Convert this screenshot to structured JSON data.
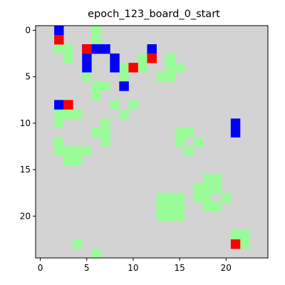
{
  "title": "epoch_123_board_0_start",
  "chart_data": {
    "type": "heatmap",
    "title": "epoch_123_board_0_start",
    "grid_size": 25,
    "xlim": [
      -0.5,
      24.5
    ],
    "ylim": [
      24.5,
      -0.5
    ],
    "xticks": [
      0,
      5,
      10,
      15,
      20
    ],
    "yticks": [
      0,
      5,
      10,
      15,
      20
    ],
    "xlabel": "",
    "ylabel": "",
    "legend": "none",
    "grid": false,
    "colors": {
      "empty": "#d3d3d3",
      "green": "#98fb98",
      "blue": "#0000ff",
      "red": "#ff0000"
    },
    "cells": {
      "blue": [
        [
          2,
          0
        ],
        [
          5,
          2
        ],
        [
          6,
          2
        ],
        [
          7,
          2
        ],
        [
          12,
          2
        ],
        [
          5,
          3
        ],
        [
          8,
          3
        ],
        [
          5,
          4
        ],
        [
          8,
          4
        ],
        [
          9,
          6
        ],
        [
          2,
          8
        ],
        [
          21,
          10
        ],
        [
          21,
          11
        ]
      ],
      "red": [
        [
          2,
          1
        ],
        [
          5,
          2
        ],
        [
          10,
          4
        ],
        [
          12,
          3
        ],
        [
          3,
          8
        ],
        [
          21,
          23
        ]
      ],
      "green": [
        [
          6,
          0
        ],
        [
          6,
          1
        ],
        [
          2,
          2
        ],
        [
          3,
          2
        ],
        [
          3,
          3
        ],
        [
          11,
          3
        ],
        [
          14,
          3
        ],
        [
          9,
          4
        ],
        [
          11,
          4
        ],
        [
          14,
          4
        ],
        [
          15,
          4
        ],
        [
          5,
          5
        ],
        [
          9,
          5
        ],
        [
          13,
          5
        ],
        [
          14,
          5
        ],
        [
          6,
          6
        ],
        [
          7,
          6
        ],
        [
          6,
          7
        ],
        [
          8,
          8
        ],
        [
          10,
          8
        ],
        [
          2,
          9
        ],
        [
          3,
          9
        ],
        [
          4,
          9
        ],
        [
          9,
          9
        ],
        [
          2,
          10
        ],
        [
          7,
          10
        ],
        [
          6,
          11
        ],
        [
          7,
          11
        ],
        [
          15,
          11
        ],
        [
          16,
          11
        ],
        [
          2,
          12
        ],
        [
          7,
          12
        ],
        [
          15,
          12
        ],
        [
          17,
          12
        ],
        [
          2,
          13
        ],
        [
          3,
          13
        ],
        [
          4,
          13
        ],
        [
          5,
          13
        ],
        [
          16,
          13
        ],
        [
          3,
          14
        ],
        [
          4,
          14
        ],
        [
          18,
          16
        ],
        [
          19,
          16
        ],
        [
          17,
          17
        ],
        [
          18,
          17
        ],
        [
          19,
          17
        ],
        [
          17,
          18
        ],
        [
          18,
          18
        ],
        [
          13,
          18
        ],
        [
          14,
          18
        ],
        [
          15,
          18
        ],
        [
          13,
          19
        ],
        [
          14,
          19
        ],
        [
          15,
          19
        ],
        [
          13,
          20
        ],
        [
          14,
          20
        ],
        [
          15,
          20
        ],
        [
          20,
          18
        ],
        [
          18,
          19
        ],
        [
          19,
          19
        ],
        [
          21,
          22
        ],
        [
          22,
          22
        ],
        [
          22,
          23
        ],
        [
          4,
          23
        ],
        [
          6,
          24
        ]
      ]
    }
  }
}
